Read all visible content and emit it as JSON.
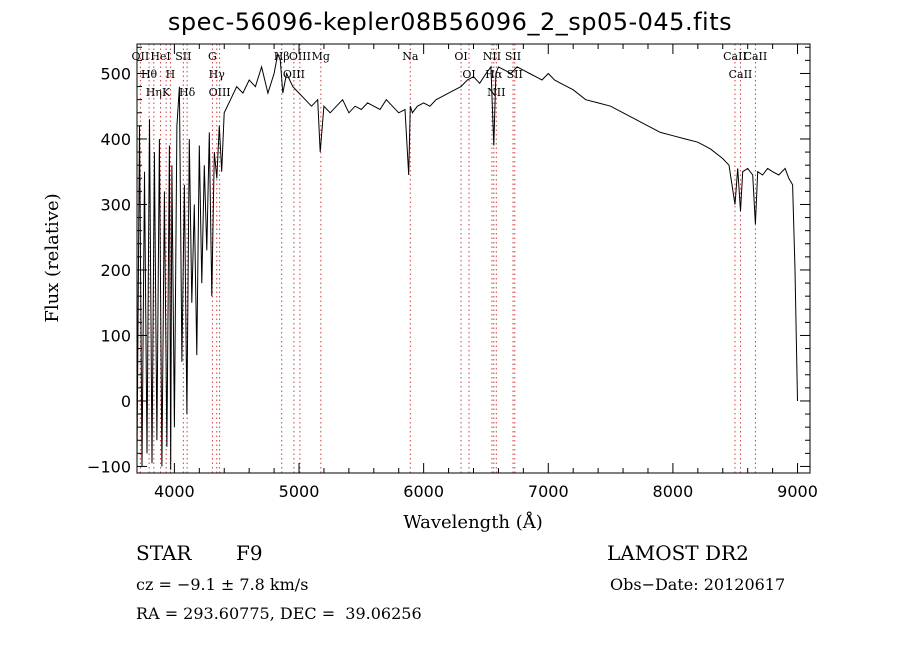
{
  "chart_data": {
    "type": "line",
    "title": "spec-56096-kepler08B56096_2_sp05-045.fits",
    "xlabel": "Wavelength (Å)",
    "ylabel": "Flux (relative)",
    "xlim": [
      3700,
      9100
    ],
    "ylim": [
      -110,
      545
    ],
    "x_ticks": [
      4000,
      5000,
      6000,
      7000,
      8000,
      9000
    ],
    "y_ticks": [
      -100,
      0,
      100,
      200,
      300,
      400,
      500
    ],
    "series": [
      {
        "color": "#000000",
        "x": [
          3700,
          3720,
          3740,
          3760,
          3780,
          3800,
          3820,
          3840,
          3860,
          3880,
          3900,
          3920,
          3940,
          3960,
          3970,
          3980,
          4000,
          4020,
          4040,
          4060,
          4080,
          4100,
          4120,
          4140,
          4160,
          4180,
          4200,
          4220,
          4240,
          4260,
          4280,
          4300,
          4320,
          4340,
          4360,
          4380,
          4400,
          4450,
          4500,
          4550,
          4600,
          4650,
          4700,
          4750,
          4800,
          4830,
          4850,
          4870,
          4900,
          4950,
          5000,
          5050,
          5100,
          5150,
          5170,
          5200,
          5250,
          5300,
          5350,
          5400,
          5450,
          5500,
          5550,
          5600,
          5650,
          5700,
          5750,
          5800,
          5850,
          5880,
          5893,
          5910,
          5950,
          6000,
          6050,
          6100,
          6150,
          6200,
          6250,
          6300,
          6350,
          6400,
          6450,
          6500,
          6540,
          6563,
          6580,
          6600,
          6650,
          6700,
          6750,
          6800,
          6850,
          6900,
          6950,
          7000,
          7050,
          7100,
          7150,
          7200,
          7300,
          7400,
          7500,
          7600,
          7700,
          7800,
          7900,
          8000,
          8100,
          8200,
          8300,
          8400,
          8450,
          8498,
          8520,
          8542,
          8560,
          8600,
          8640,
          8662,
          8680,
          8720,
          8760,
          8800,
          8850,
          8900,
          8930,
          8960,
          8980,
          9000
        ],
        "y": [
          -90,
          420,
          -100,
          350,
          -80,
          430,
          -95,
          380,
          -60,
          400,
          -100,
          320,
          -70,
          390,
          -105,
          360,
          -40,
          420,
          480,
          60,
          330,
          -20,
          400,
          150,
          300,
          70,
          390,
          180,
          360,
          230,
          410,
          160,
          380,
          340,
          420,
          350,
          440,
          460,
          480,
          470,
          490,
          480,
          510,
          470,
          500,
          530,
          520,
          470,
          500,
          480,
          470,
          460,
          450,
          460,
          380,
          450,
          440,
          450,
          460,
          440,
          450,
          445,
          455,
          450,
          445,
          460,
          450,
          440,
          445,
          345,
          450,
          440,
          450,
          455,
          450,
          460,
          465,
          470,
          475,
          480,
          490,
          495,
          485,
          500,
          510,
          390,
          500,
          510,
          505,
          500,
          510,
          505,
          500,
          495,
          490,
          500,
          490,
          485,
          480,
          475,
          460,
          455,
          450,
          440,
          430,
          420,
          410,
          405,
          400,
          395,
          385,
          370,
          360,
          300,
          355,
          290,
          350,
          355,
          345,
          270,
          350,
          345,
          355,
          350,
          345,
          355,
          340,
          330,
          200,
          0
        ]
      }
    ],
    "reference_lines": [
      {
        "label": "OII",
        "x": 3727
      },
      {
        "label": "Hθ",
        "x": 3797
      },
      {
        "label": "Hη",
        "x": 3835
      },
      {
        "label": "HeI",
        "x": 3889
      },
      {
        "label": "K",
        "x": 3934
      },
      {
        "label": "H",
        "x": 3968
      },
      {
        "label": "SII",
        "x": 4072
      },
      {
        "label": "Hδ",
        "x": 4102
      },
      {
        "label": "G",
        "x": 4305
      },
      {
        "label": "Hγ",
        "x": 4340
      },
      {
        "label": "OIII",
        "x": 4363
      },
      {
        "label": "Hβ",
        "x": 4861
      },
      {
        "label": "OIII",
        "x": 4959
      },
      {
        "label": "OIII",
        "x": 5007
      },
      {
        "label": "Mg",
        "x": 5175
      },
      {
        "label": "Na",
        "x": 5893
      },
      {
        "label": "OI",
        "x": 6300
      },
      {
        "label": "OI",
        "x": 6364
      },
      {
        "label": "NII",
        "x": 6548
      },
      {
        "label": "Hα",
        "x": 6563
      },
      {
        "label": "NII",
        "x": 6583
      },
      {
        "label": "SII",
        "x": 6717
      },
      {
        "label": "SII",
        "x": 6731
      },
      {
        "label": "CaII",
        "x": 8498
      },
      {
        "label": "CaII",
        "x": 8542
      },
      {
        "label": "CaII",
        "x": 8662
      }
    ],
    "grid": false,
    "legend": "none"
  },
  "info": {
    "class_label": "STAR",
    "subclass": "F9",
    "survey": "LAMOST DR2",
    "cz": "cz = −9.1 ± 7.8 km/s",
    "obs_date": "Obs−Date: 20120617",
    "coords": "RA = 293.60775, DEC =  39.06256"
  },
  "colors": {
    "spectrum": "#000000",
    "reference_line": "#d04040",
    "axes": "#000000"
  }
}
